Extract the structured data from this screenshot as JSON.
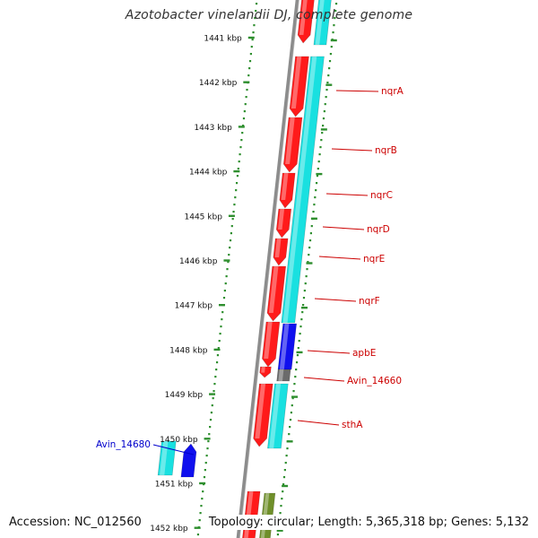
{
  "title": "Azotobacter vinelandii DJ, complete genome",
  "accession": "Accession: NC_012560",
  "topology": "Topology: circular; Length: 5,365,318 bp; Genes: 5,132",
  "colors": {
    "backbone": "#8c8c8c",
    "tick": "#2f8f2f",
    "forward_gene": "#ff1a1a",
    "cds": "#19e0e0",
    "reverse_gene": "#1010ee",
    "pseudo": "#6b6b6b",
    "olive": "#6f8f2a",
    "label_red": "#cc0000",
    "label_blue": "#0000cc"
  },
  "scale_labels": [
    "1441 kbp",
    "1442 kbp",
    "1443 kbp",
    "1444 kbp",
    "1445 kbp",
    "1446 kbp",
    "1447 kbp",
    "1448 kbp",
    "1449 kbp",
    "1450 kbp",
    "1451 kbp",
    "1452 kbp"
  ],
  "gene_labels": [
    {
      "text": "nqrA",
      "color": "red"
    },
    {
      "text": "nqrB",
      "color": "red"
    },
    {
      "text": "nqrC",
      "color": "red"
    },
    {
      "text": "nqrD",
      "color": "red"
    },
    {
      "text": "nqrE",
      "color": "red"
    },
    {
      "text": "nqrF",
      "color": "red"
    },
    {
      "text": "apbE",
      "color": "red"
    },
    {
      "text": "Avin_14660",
      "color": "red"
    },
    {
      "text": "sthA",
      "color": "red"
    },
    {
      "text": "Avin_14680",
      "color": "blue"
    }
  ]
}
